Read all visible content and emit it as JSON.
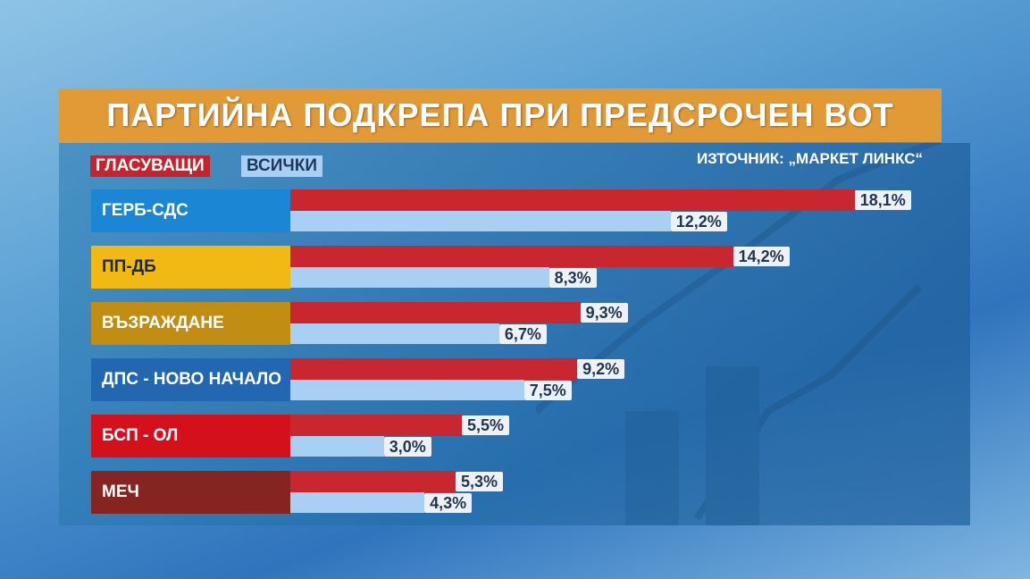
{
  "title": "ПАРТИЙНА ПОДКРЕПА ПРИ ПРЕДСРОЧЕН ВОТ",
  "legend": {
    "voters": "ГЛАСУВАЩИ",
    "all": "ВСИЧКИ"
  },
  "source": "ИЗТОЧНИК: „МАРКЕТ ЛИНКС“",
  "colors": {
    "voters": "#c8272f",
    "all": "#a9d0f2",
    "title_bg": "#e29a37"
  },
  "parties": [
    {
      "name": "ГЕРБ-СДС",
      "color": "#1a86d4",
      "text": "#ffffff",
      "voters": "18,1%",
      "all": "12,2%"
    },
    {
      "name": "ПП-ДБ",
      "color": "#f0b913",
      "text": "#1d2a3a",
      "voters": "14,2%",
      "all": "8,3%"
    },
    {
      "name": "ВЪЗРАЖДАНЕ",
      "color": "#c18d12",
      "text": "#ffffff",
      "voters": "9,3%",
      "all": "6,7%"
    },
    {
      "name": "ДПС - НОВО НАЧАЛО",
      "color": "#2367b1",
      "text": "#ffffff",
      "voters": "9,2%",
      "all": "7,5%"
    },
    {
      "name": "БСП - ОЛ",
      "color": "#d5101d",
      "text": "#ffffff",
      "voters": "5,5%",
      "all": "3,0%"
    },
    {
      "name": "МЕЧ",
      "color": "#862421",
      "text": "#ffffff",
      "voters": "5,3%",
      "all": "4,3%"
    }
  ],
  "chart_data": {
    "type": "bar",
    "orientation": "horizontal",
    "title": "ПАРТИЙНА ПОДКРЕПА ПРИ ПРЕДСРОЧЕН ВОТ",
    "subtitle": "ИЗТОЧНИК: „МАРКЕТ ЛИНКС“",
    "categories": [
      "ГЕРБ-СДС",
      "ПП-ДБ",
      "ВЪЗРАЖДАНЕ",
      "ДПС - НОВО НАЧАЛО",
      "БСП - ОЛ",
      "МЕЧ"
    ],
    "series": [
      {
        "name": "ГЛАСУВАЩИ",
        "values": [
          18.1,
          14.2,
          9.3,
          9.2,
          5.5,
          5.3
        ]
      },
      {
        "name": "ВСИЧКИ",
        "values": [
          12.2,
          8.3,
          6.7,
          7.5,
          3.0,
          4.3
        ]
      }
    ],
    "unit": "%",
    "legend_position": "top-left",
    "grid": false
  }
}
